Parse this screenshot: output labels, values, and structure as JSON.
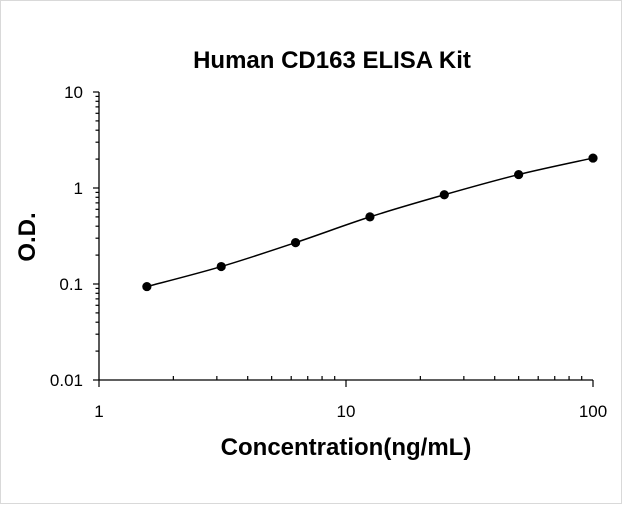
{
  "chart_data": {
    "type": "scatter",
    "title": "Human CD163 ELISA Kit",
    "xlabel": "Concentration(ng/mL)",
    "ylabel": "O.D.",
    "x_scale": "log",
    "y_scale": "log",
    "xlim": [
      1,
      100
    ],
    "ylim": [
      0.01,
      10
    ],
    "x_ticks": [
      {
        "value": 1,
        "label": "1"
      },
      {
        "value": 10,
        "label": "10"
      },
      {
        "value": 100,
        "label": "100"
      }
    ],
    "y_ticks": [
      {
        "value": 0.01,
        "label": "0.01"
      },
      {
        "value": 0.1,
        "label": "0.1"
      },
      {
        "value": 1,
        "label": "1"
      },
      {
        "value": 10,
        "label": "10"
      }
    ],
    "grid": false,
    "legend": "none",
    "series": [
      {
        "x": [
          1.5625,
          3.125,
          6.25,
          12.5,
          25,
          50,
          100
        ],
        "y": [
          0.094,
          0.152,
          0.27,
          0.5,
          0.85,
          1.38,
          2.05
        ],
        "marker": "circle",
        "line": "smooth fitted curve"
      }
    ],
    "colors": {
      "marks": "#000000",
      "frame": "#d9d9d9"
    }
  }
}
